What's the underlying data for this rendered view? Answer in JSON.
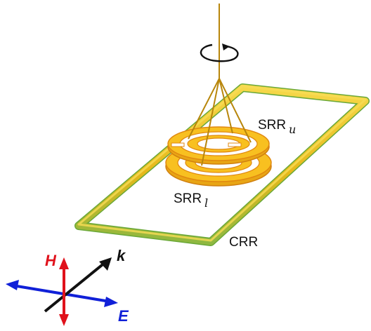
{
  "labels": {
    "srr_upper": {
      "main": "SRR",
      "sub": "u"
    },
    "srr_lower": {
      "main": "SRR",
      "sub": "l"
    },
    "crr": "CRR"
  },
  "axes": {
    "h": {
      "text": "H",
      "color": "#e0111b"
    },
    "k": {
      "text": "k",
      "color": "#111111"
    },
    "e": {
      "text": "E",
      "color": "#1020d8"
    }
  },
  "colors": {
    "ring_fill": "#f8c020",
    "ring_edge": "#e08810",
    "wire": "#b8860b",
    "frame": "#e8c020",
    "frame_edge": "#6aa838"
  },
  "icons": {
    "rotation": "rotation-arrow-icon"
  }
}
